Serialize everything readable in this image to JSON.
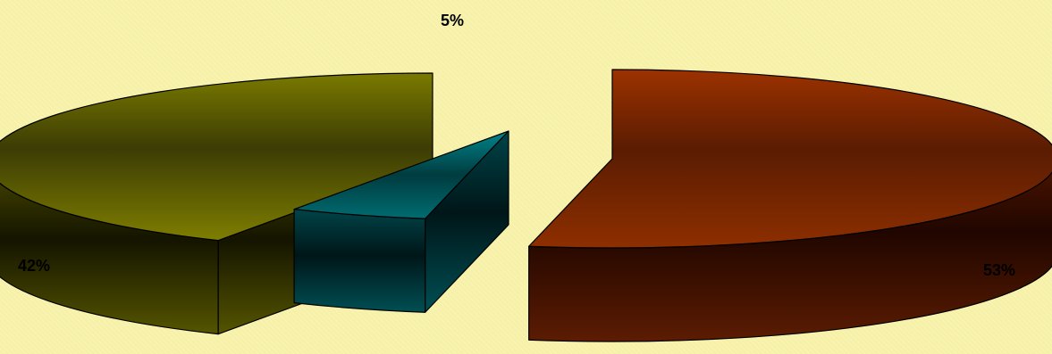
{
  "chart_data": {
    "type": "pie",
    "style": "3d-exploded",
    "title": "",
    "categories": [
      "",
      "",
      ""
    ],
    "values": [
      53,
      5,
      42
    ],
    "labels": [
      "53%",
      "5%",
      "42%"
    ],
    "colors": [
      "#8b2e00",
      "#006f73",
      "#6f6f00"
    ],
    "legend": "none",
    "background": "#f6f1a6"
  }
}
